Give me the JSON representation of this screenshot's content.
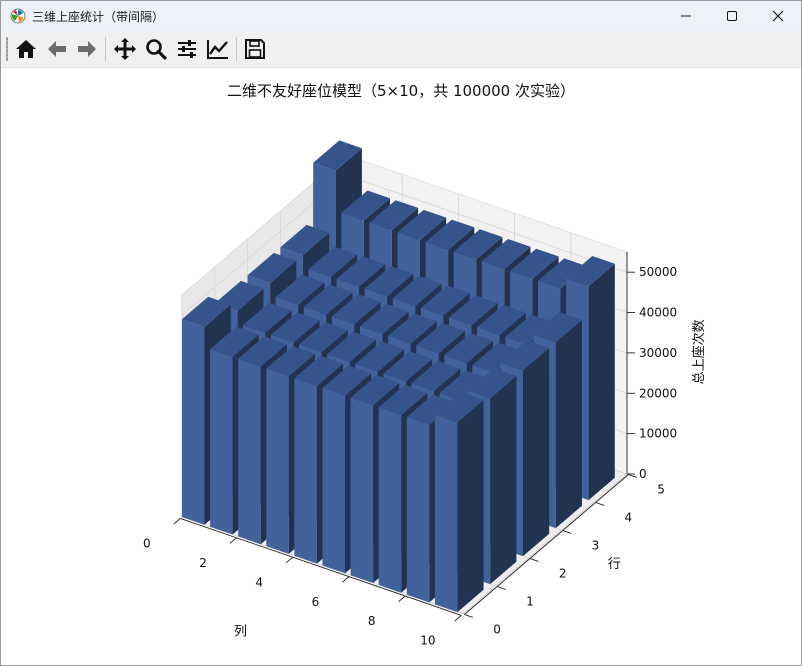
{
  "window": {
    "title": "三维上座统计（带间隔）",
    "controls": {
      "minimize": "minimize-icon",
      "maximize": "maximize-icon",
      "close": "close-icon"
    }
  },
  "toolbar": {
    "buttons": [
      {
        "name": "home",
        "icon": "home-icon"
      },
      {
        "name": "back",
        "icon": "arrow-left-icon"
      },
      {
        "name": "forward",
        "icon": "arrow-right-icon"
      },
      {
        "name": "pan",
        "icon": "move-icon"
      },
      {
        "name": "zoom",
        "icon": "zoom-icon"
      },
      {
        "name": "subplots",
        "icon": "sliders-icon"
      },
      {
        "name": "customize",
        "icon": "line-chart-icon"
      },
      {
        "name": "save",
        "icon": "save-icon"
      }
    ]
  },
  "colors": {
    "bar_front": "#42629c",
    "bar_side": "#223352",
    "bar_top": "#36548c",
    "pane_back": "#f2f2f2",
    "pane_side": "#e8e8e8",
    "grid": "#d6d6d6"
  },
  "chart_data": {
    "type": "bar3d",
    "title": "二维不友好座位模型（5×10，共 100000 次实验）",
    "xlabel": "列",
    "ylabel": "行",
    "zlabel": "总上座次数",
    "xticks": [
      "0",
      "2",
      "4",
      "6",
      "8",
      "10"
    ],
    "yticks": [
      "0",
      "1",
      "2",
      "3",
      "4",
      "5"
    ],
    "zticks": [
      "0",
      "10000",
      "20000",
      "30000",
      "40000",
      "50000"
    ],
    "xlim": [
      0,
      10
    ],
    "ylim": [
      0,
      5
    ],
    "zlim": [
      0,
      55000
    ],
    "columns": [
      0,
      1,
      2,
      3,
      4,
      5,
      6,
      7,
      8,
      9
    ],
    "rows": [
      0,
      1,
      2,
      3,
      4
    ],
    "values": [
      [
        49000,
        44000,
        44000,
        44000,
        44000,
        44000,
        44000,
        44000,
        44000,
        47000
      ],
      [
        46000,
        43000,
        43000,
        43000,
        43000,
        43000,
        43000,
        43000,
        43000,
        46000
      ],
      [
        46000,
        43000,
        43000,
        43000,
        43000,
        43000,
        43000,
        43000,
        43000,
        46000
      ],
      [
        46000,
        43000,
        43000,
        43000,
        43000,
        43000,
        43000,
        43000,
        43000,
        46000
      ],
      [
        60000,
        50000,
        50000,
        50000,
        50000,
        50000,
        50000,
        50000,
        50000,
        53000
      ]
    ]
  }
}
